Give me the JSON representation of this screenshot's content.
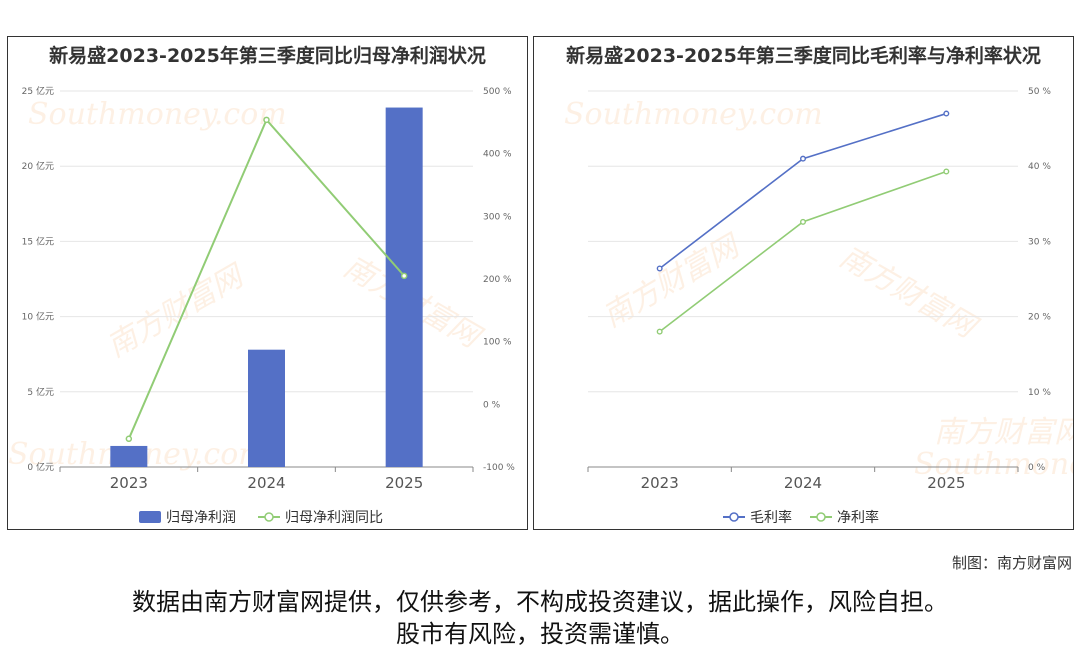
{
  "charts": {
    "left": {
      "title": "新易盛2023-2025年第三季度同比归母净利润状况"
    },
    "right": {
      "title": "新易盛2023-2025年第三季度同比毛利率与净利率状况"
    }
  },
  "watermark": {
    "cn": "南方财富网",
    "en": "Southmoney.com"
  },
  "colors": {
    "blue": "#5470c6",
    "green": "#91cc75",
    "grid": "#e6e6e6",
    "axis_text": "#666666"
  },
  "footer": {
    "credit": "制图：南方财富网",
    "line1": "数据由南方财富网提供，仅供参考，不构成投资建议，据此操作，风险自担。",
    "line2": "股市有风险，投资需谨慎。"
  },
  "chart_data": [
    {
      "type": "bar",
      "title": "新易盛2023-2025年第三季度同比归母净利润状况",
      "categories": [
        "2023",
        "2024",
        "2025"
      ],
      "y_left": {
        "min": 0,
        "max": 25,
        "step": 5,
        "unit": " 亿元"
      },
      "y_right": {
        "min": -100,
        "max": 500,
        "step": 100,
        "unit": " %"
      },
      "series": [
        {
          "name": "归母净利润",
          "type": "bar",
          "axis": "left",
          "color": "#5470c6",
          "values": [
            1.4,
            7.8,
            23.9
          ]
        },
        {
          "name": "归母净利润同比",
          "type": "line",
          "axis": "right",
          "color": "#91cc75",
          "values": [
            -55,
            454,
            205
          ]
        }
      ],
      "legend": "bottom",
      "grid": true
    },
    {
      "type": "line",
      "title": "新易盛2023-2025年第三季度同比毛利率与净利率状况",
      "categories": [
        "2023",
        "2024",
        "2025"
      ],
      "y": {
        "min": 0,
        "max": 50,
        "step": 10,
        "unit": " %"
      },
      "series": [
        {
          "name": "毛利率",
          "color": "#5470c6",
          "values": [
            26.4,
            41.0,
            47.0
          ]
        },
        {
          "name": "净利率",
          "color": "#91cc75",
          "values": [
            18.0,
            32.6,
            39.3
          ]
        }
      ],
      "legend": "bottom",
      "grid": true
    }
  ]
}
